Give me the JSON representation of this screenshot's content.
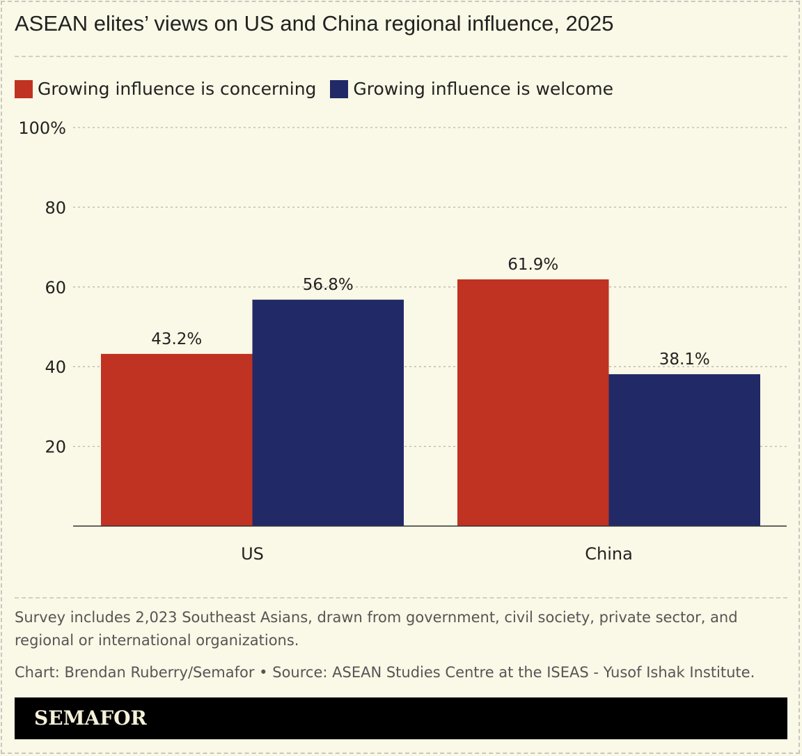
{
  "title": "ASEAN elites’ views on US and China regional influence, 2025",
  "colors": {
    "background": "#faf8e6",
    "concerning": "#c03221",
    "welcome": "#212a66"
  },
  "chart_data": {
    "type": "bar",
    "title": "ASEAN elites’ views on US and China regional influence, 2025",
    "categories": [
      "US",
      "China"
    ],
    "series": [
      {
        "name": "Growing influence is concerning",
        "values": [
          43.2,
          61.9
        ],
        "labels": [
          "43.2%",
          "61.9%"
        ],
        "color": "#c03221"
      },
      {
        "name": "Growing influence is welcome",
        "values": [
          56.8,
          38.1
        ],
        "labels": [
          "56.8%",
          "38.1%"
        ],
        "color": "#212a66"
      }
    ],
    "ylim": [
      0,
      100
    ],
    "yticks": [
      20,
      40,
      60,
      80,
      100
    ],
    "ytick_labels": [
      "20",
      "40",
      "60",
      "80",
      "100%"
    ],
    "grid": true,
    "legend": "top-left",
    "xlabel": "",
    "ylabel": ""
  },
  "notes": {
    "survey": "Survey includes 2,023 Southeast Asians, drawn from government, civil society, private sector, and regional or international organizations.",
    "credit": "Chart: Brendan Ruberry/Semafor • Source: ASEAN Studies Centre at the ISEAS - Yusof Ishak Institute."
  },
  "footer": {
    "logo": "SEMAFOR"
  }
}
